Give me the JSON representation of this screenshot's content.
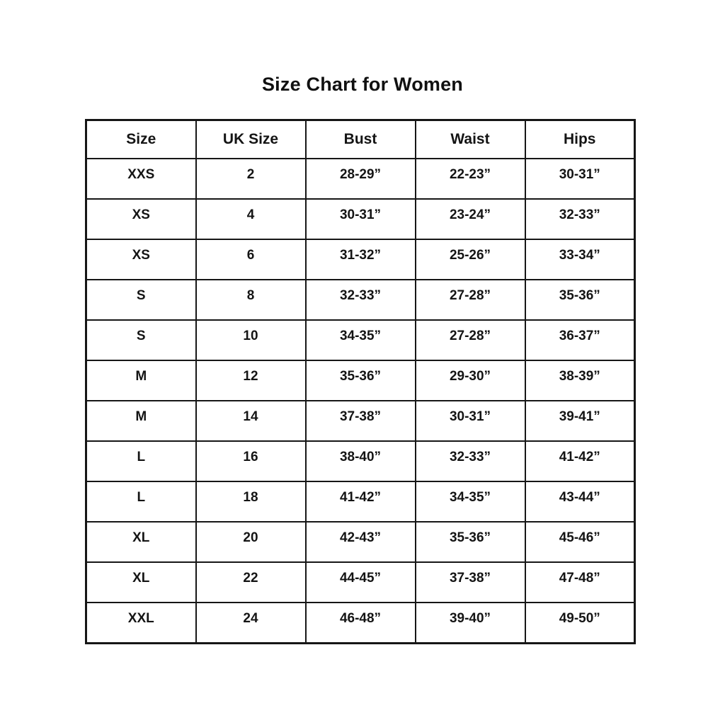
{
  "title": "Size Chart for Women",
  "table": {
    "headers": [
      "Size",
      "UK Size",
      "Bust",
      "Waist",
      "Hips"
    ],
    "rows": [
      [
        "XXS",
        "2",
        "28-29”",
        "22-23”",
        "30-31”"
      ],
      [
        "XS",
        "4",
        "30-31”",
        "23-24”",
        "32-33”"
      ],
      [
        "XS",
        "6",
        "31-32”",
        "25-26”",
        "33-34”"
      ],
      [
        "S",
        "8",
        "32-33”",
        "27-28”",
        "35-36”"
      ],
      [
        "S",
        "10",
        "34-35”",
        "27-28”",
        "36-37”"
      ],
      [
        "M",
        "12",
        "35-36”",
        "29-30”",
        "38-39”"
      ],
      [
        "M",
        "14",
        "37-38”",
        "30-31”",
        "39-41”"
      ],
      [
        "L",
        "16",
        "38-40”",
        "32-33”",
        "41-42”"
      ],
      [
        "L",
        "18",
        "41-42”",
        "34-35”",
        "43-44”"
      ],
      [
        "XL",
        "20",
        "42-43”",
        "35-36”",
        "45-46”"
      ],
      [
        "XL",
        "22",
        "44-45”",
        "37-38”",
        "47-48”"
      ],
      [
        "XXL",
        "24",
        "46-48”",
        "39-40”",
        "49-50”"
      ]
    ]
  },
  "colors": {
    "background": "#ffffff",
    "text": "#141414",
    "border": "#161616"
  },
  "chart_data": {
    "type": "table",
    "title": "Size Chart for Women",
    "columns": [
      "Size",
      "UK Size",
      "Bust",
      "Waist",
      "Hips"
    ],
    "rows": [
      [
        "XXS",
        "2",
        "28-29”",
        "22-23”",
        "30-31”"
      ],
      [
        "XS",
        "4",
        "30-31”",
        "23-24”",
        "32-33”"
      ],
      [
        "XS",
        "6",
        "31-32”",
        "25-26”",
        "33-34”"
      ],
      [
        "S",
        "8",
        "32-33”",
        "27-28”",
        "35-36”"
      ],
      [
        "S",
        "10",
        "34-35”",
        "27-28”",
        "36-37”"
      ],
      [
        "M",
        "12",
        "35-36”",
        "29-30”",
        "38-39”"
      ],
      [
        "M",
        "14",
        "37-38”",
        "30-31”",
        "39-41”"
      ],
      [
        "L",
        "16",
        "38-40”",
        "32-33”",
        "41-42”"
      ],
      [
        "L",
        "18",
        "41-42”",
        "34-35”",
        "43-44”"
      ],
      [
        "XL",
        "20",
        "42-43”",
        "35-36”",
        "45-46”"
      ],
      [
        "XL",
        "22",
        "44-45”",
        "37-38”",
        "47-48”"
      ],
      [
        "XXL",
        "24",
        "46-48”",
        "39-40”",
        "49-50”"
      ]
    ],
    "layout": {
      "grid": "on",
      "header_row": true,
      "text_alignment": "center"
    }
  }
}
